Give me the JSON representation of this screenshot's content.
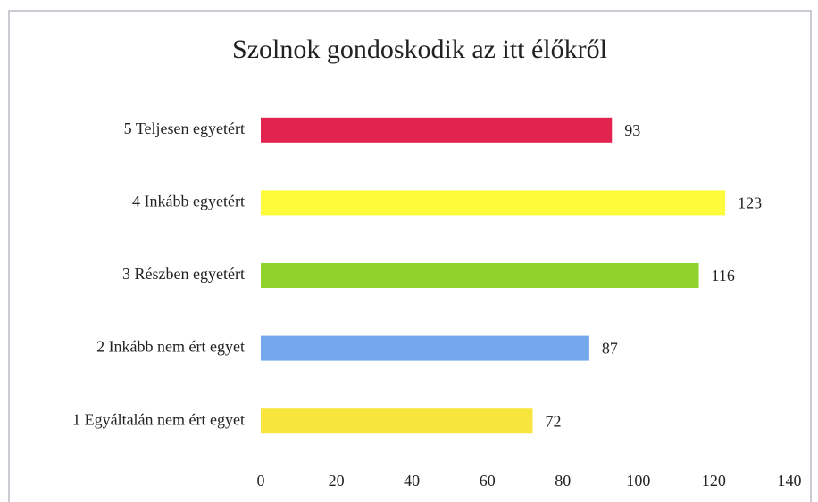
{
  "chart_data": {
    "type": "hbar",
    "title": "Szolnok gondoskodik az itt élőkről",
    "categories": [
      "5 Teljesen egyetért",
      "4  Inkább egyetért",
      "3 Részben egyetért",
      "2 Inkább nem ért egyet",
      "1 Egyáltalán nem ért egyet"
    ],
    "values": [
      93,
      123,
      116,
      87,
      72
    ],
    "colors": [
      "#e2234f",
      "#fdfc3a",
      "#8fd22c",
      "#73a9ec",
      "#f7e43c"
    ],
    "xlim": [
      0,
      140
    ],
    "xticks": [
      0,
      20,
      40,
      60,
      80,
      100,
      120,
      140
    ],
    "grid": false
  }
}
